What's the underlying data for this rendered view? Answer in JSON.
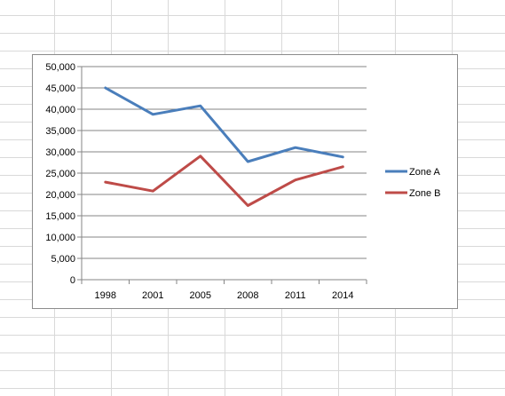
{
  "chart_data": {
    "type": "line",
    "categories": [
      "1998",
      "2001",
      "2005",
      "2008",
      "2011",
      "2014"
    ],
    "series": [
      {
        "name": "Zone A",
        "color": "#4a7ebb",
        "values": [
          45000,
          38800,
          40800,
          27700,
          31000,
          28800
        ]
      },
      {
        "name": "Zone B",
        "color": "#be4b48",
        "values": [
          22900,
          20800,
          29000,
          17400,
          23400,
          26500
        ]
      }
    ],
    "ylim": [
      0,
      50000
    ],
    "yticks": [
      "0",
      "5,000",
      "10,000",
      "15,000",
      "20,000",
      "25,000",
      "30,000",
      "35,000",
      "40,000",
      "45,000",
      "50,000"
    ],
    "grid": true,
    "legend": "right"
  }
}
